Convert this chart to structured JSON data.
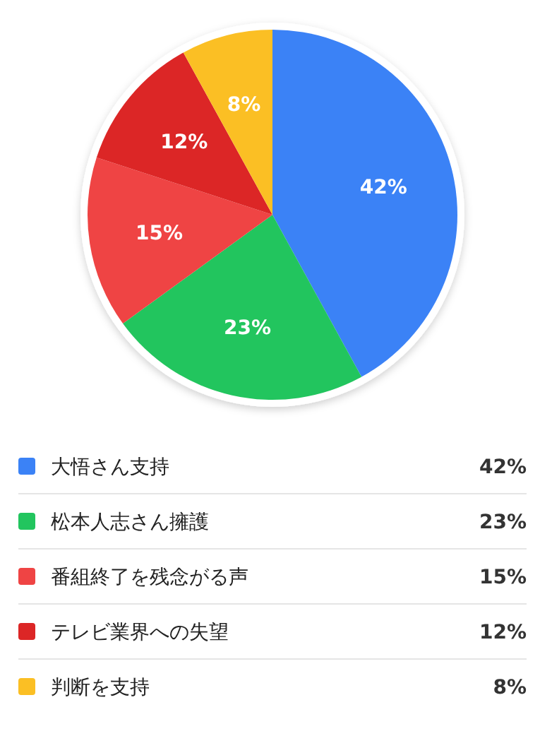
{
  "chart_data": {
    "type": "pie",
    "categories": [
      "大悟さん支持",
      "松本人志さん擁護",
      "番組終了を残念がる声",
      "テレビ業界への失望",
      "判断を支持"
    ],
    "values": [
      42,
      23,
      15,
      12,
      8
    ],
    "value_labels": [
      "42%",
      "23%",
      "15%",
      "12%",
      "8%"
    ],
    "colors": [
      "#3b82f6",
      "#22c55e",
      "#ef4444",
      "#dc2626",
      "#fbbf24"
    ],
    "legend": "bottom"
  }
}
